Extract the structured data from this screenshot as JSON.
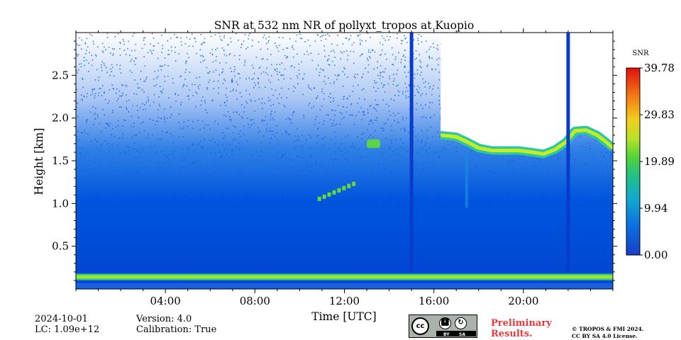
{
  "chart_data": {
    "type": "heatmap",
    "title": "SNR at 532 nm NR of pollyxt_tropos at Kuopio",
    "xlabel": "Time [UTC]",
    "ylabel": "Height [km]",
    "xlim": [
      0,
      24
    ],
    "ylim": [
      0,
      3.0
    ],
    "x_ticks": [
      {
        "value": 4,
        "label": "04:00"
      },
      {
        "value": 8,
        "label": "08:00"
      },
      {
        "value": 12,
        "label": "12:00"
      },
      {
        "value": 16,
        "label": "16:00"
      },
      {
        "value": 20,
        "label": "20:00"
      }
    ],
    "y_ticks": [
      {
        "value": 0.5,
        "label": "0.5"
      },
      {
        "value": 1.0,
        "label": "1.0"
      },
      {
        "value": 1.5,
        "label": "1.5"
      },
      {
        "value": 2.0,
        "label": "2.0"
      },
      {
        "value": 2.5,
        "label": "2.5"
      }
    ],
    "colorbar": {
      "label": "SNR",
      "min": 0.0,
      "max": 39.78,
      "ticks": [
        "0.00",
        "9.94",
        "19.89",
        "29.83",
        "39.78"
      ],
      "colormap": "jet"
    },
    "features": [
      {
        "name": "near-surface high-SNR layer",
        "height_km": [
          0.1,
          0.18
        ],
        "snr": 18
      },
      {
        "name": "aerosol layer 11-13 UTC",
        "time_utc": [
          10.8,
          12.6
        ],
        "height_km": [
          1.05,
          1.25
        ],
        "snr": 14
      },
      {
        "name": "layer 13 UTC",
        "time_utc": [
          13.0,
          13.6
        ],
        "height_km": [
          1.65,
          1.75
        ],
        "snr": 16
      },
      {
        "name": "cloud base layer",
        "time_utc": [
          16.3,
          24.0
        ],
        "height_km": [
          1.5,
          1.85
        ],
        "snr": 20
      },
      {
        "name": "profile at 15:00",
        "time_utc": 15.0,
        "snr": 0
      },
      {
        "name": "profile at 22:00",
        "time_utc": 22.0,
        "snr": 0
      }
    ]
  },
  "colors": {
    "low_snr": "#0050d8",
    "mid_snr": "#2dd24a",
    "high_snr": "#e02010",
    "prelim_text": "#e8383d"
  },
  "footer": {
    "date": "2024-10-01",
    "lc": "LC: 1.09e+12",
    "version": "Version: 4.0",
    "calibration": "Calibration: True",
    "preliminary_line1": "Preliminary",
    "preliminary_line2": "Results.",
    "copyright_line1": "© TROPOS & FMI 2024.",
    "copyright_line2": "CC BY SA 4.0 License.",
    "license_badge": {
      "cc": "cc",
      "by": "BY",
      "sa": "SA"
    }
  }
}
